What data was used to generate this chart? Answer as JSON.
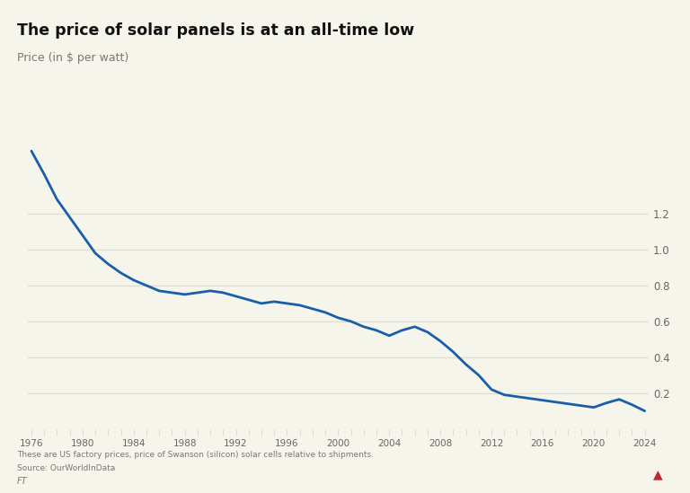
{
  "title": "The price of solar panels is at an all-time low",
  "subtitle": "Price (in $ per watt)",
  "source_line1": "These are US factory prices, price of Swanson (silicon) solar cells relative to shipments.",
  "source_line2": "Source: OurWorldInData",
  "source_line3": "FT",
  "years": [
    1976,
    1977,
    1978,
    1979,
    1980,
    1981,
    1982,
    1983,
    1984,
    1985,
    1986,
    1987,
    1988,
    1989,
    1990,
    1991,
    1992,
    1993,
    1994,
    1995,
    1996,
    1997,
    1998,
    1999,
    2000,
    2001,
    2002,
    2003,
    2004,
    2005,
    2006,
    2007,
    2008,
    2009,
    2010,
    2011,
    2012,
    2013,
    2014,
    2015,
    2016,
    2017,
    2018,
    2019,
    2020,
    2021,
    2022,
    2023,
    2024
  ],
  "prices": [
    1.55,
    1.42,
    1.28,
    1.18,
    1.08,
    0.98,
    0.92,
    0.87,
    0.83,
    0.8,
    0.77,
    0.76,
    0.75,
    0.76,
    0.77,
    0.76,
    0.74,
    0.72,
    0.7,
    0.71,
    0.7,
    0.69,
    0.67,
    0.65,
    0.62,
    0.6,
    0.57,
    0.55,
    0.52,
    0.55,
    0.57,
    0.54,
    0.49,
    0.43,
    0.36,
    0.3,
    0.22,
    0.19,
    0.18,
    0.17,
    0.16,
    0.15,
    0.14,
    0.13,
    0.12,
    0.145,
    0.165,
    0.135,
    0.1
  ],
  "line_color": "#1a5ea8",
  "line_width": 2.0,
  "background_color": "#f5f5eb",
  "grid_color": "#ddddd0",
  "tick_color": "#666666",
  "title_color": "#111111",
  "subtitle_color": "#777777",
  "yticks": [
    0.2,
    0.4,
    0.6,
    0.8,
    1.0,
    1.2
  ],
  "ylim": [
    0,
    1.65
  ],
  "xlim_start": 1976,
  "xlim_end": 2024,
  "accent_color": "#c1272d",
  "accent_bar_width": 0.06,
  "accent_bar_height": 0.012
}
